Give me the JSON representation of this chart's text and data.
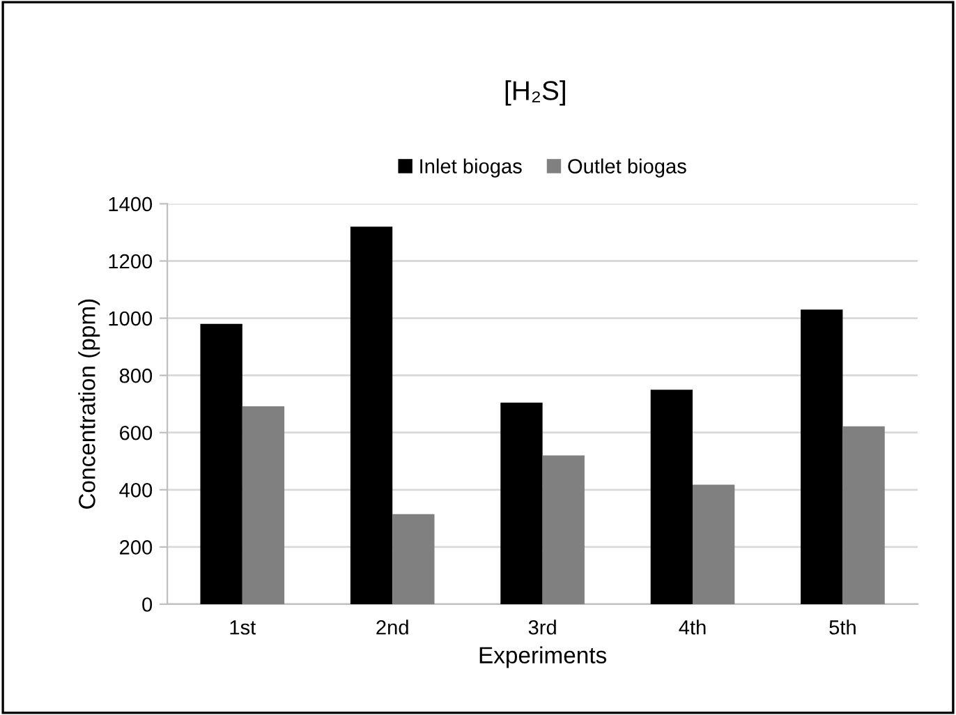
{
  "chart_data": {
    "type": "bar",
    "title": "[H₂S]",
    "xlabel": "Experiments",
    "ylabel": "Concentration (ppm)",
    "categories": [
      "1st",
      "2nd",
      "3rd",
      "4th",
      "5th"
    ],
    "series": [
      {
        "name": "Inlet biogas",
        "color": "#000000",
        "values": [
          980,
          1320,
          705,
          750,
          1030
        ]
      },
      {
        "name": "Outlet biogas",
        "color": "#808080",
        "values": [
          692,
          315,
          520,
          418,
          622
        ]
      }
    ],
    "ylim": [
      0,
      1400
    ],
    "yticks": [
      0,
      200,
      400,
      600,
      800,
      1000,
      1200,
      1400
    ],
    "grid": "y",
    "legend": "top"
  }
}
